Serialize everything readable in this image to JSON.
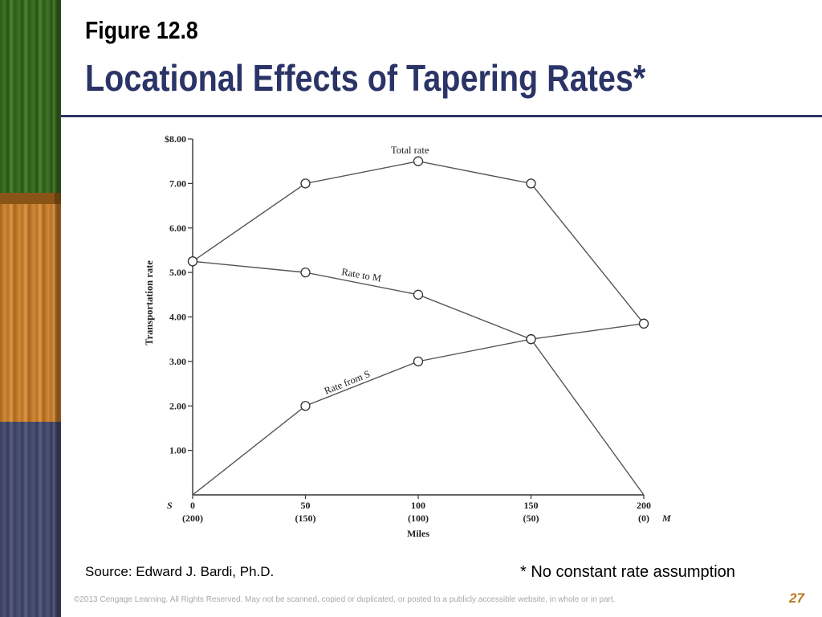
{
  "slide": {
    "figure_label": "Figure 12.8",
    "title": "Locational Effects of Tapering Rates*",
    "source": "Source:  Edward J. Bardi, Ph.D.",
    "footnote": "* No constant rate assumption",
    "copyright": "©2013 Cengage Learning. All Rights Reserved. May not be scanned, copied or duplicated, or posted to a publicly accessible website, in whole or in part.",
    "page_number": "27"
  },
  "chart_data": {
    "type": "line",
    "xlabel": "Miles",
    "ylabel": "Transportation rate",
    "xlim": [
      0,
      200
    ],
    "ylim": [
      0,
      8
    ],
    "x_ticks": [
      {
        "value": 0,
        "label": "0",
        "sub": "(200)"
      },
      {
        "value": 50,
        "label": "50",
        "sub": "(150)"
      },
      {
        "value": 100,
        "label": "100",
        "sub": "(100)"
      },
      {
        "value": 150,
        "label": "150",
        "sub": "(50)"
      },
      {
        "value": 200,
        "label": "200",
        "sub": "(0)"
      }
    ],
    "y_ticks": [
      {
        "value": 1,
        "label": "1.00"
      },
      {
        "value": 2,
        "label": "2.00"
      },
      {
        "value": 3,
        "label": "3.00"
      },
      {
        "value": 4,
        "label": "4.00"
      },
      {
        "value": 5,
        "label": "5.00"
      },
      {
        "value": 6,
        "label": "6.00"
      },
      {
        "value": 7,
        "label": "7.00"
      },
      {
        "value": 8,
        "label": "$8.00"
      }
    ],
    "endpoint_left": "S",
    "endpoint_right": "M",
    "series": [
      {
        "name": "Total rate",
        "x": [
          0,
          50,
          100,
          150,
          200
        ],
        "y": [
          5.25,
          7.0,
          7.5,
          7.0,
          3.85
        ],
        "markers": true
      },
      {
        "name": "Rate to M",
        "x": [
          0,
          50,
          100,
          150,
          200
        ],
        "y": [
          5.25,
          5.0,
          4.5,
          3.5,
          0
        ],
        "markers": [
          true,
          true,
          true,
          true,
          false
        ]
      },
      {
        "name": "Rate from S",
        "x": [
          0,
          50,
          100,
          150,
          200
        ],
        "y": [
          0,
          2.0,
          3.0,
          3.5,
          3.85
        ],
        "markers": [
          false,
          true,
          true,
          true,
          true
        ]
      }
    ]
  }
}
